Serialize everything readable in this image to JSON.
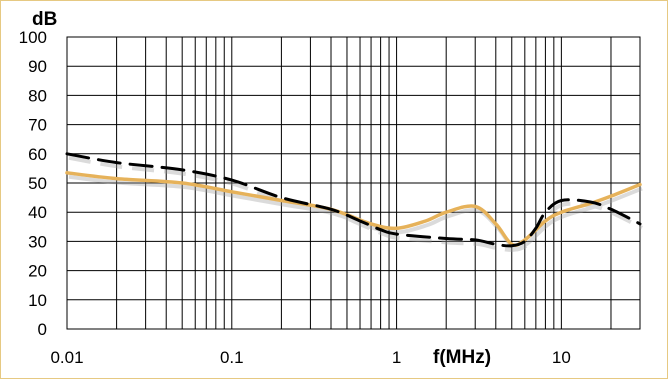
{
  "chart_data": {
    "type": "line",
    "xlabel": "f(MHz)",
    "ylabel": "dB",
    "x_scale": "log",
    "xlim": [
      0.01,
      30
    ],
    "ylim": [
      0,
      100
    ],
    "grid": true,
    "x_tick_labels": [
      "0.01",
      "0.1",
      "1",
      "10"
    ],
    "y_tick_labels": [
      "0",
      "10",
      "20",
      "30",
      "40",
      "50",
      "60",
      "70",
      "80",
      "90",
      "100"
    ],
    "series": [
      {
        "color": "#e6b25a",
        "style": "solid",
        "x": [
          0.01,
          0.02,
          0.05,
          0.1,
          0.2,
          0.4,
          0.7,
          1.0,
          1.5,
          2.0,
          3.0,
          4.0,
          5.0,
          6.0,
          8.0,
          10,
          15,
          20,
          30
        ],
        "y": [
          53.5,
          51.5,
          50.0,
          47.0,
          44.0,
          41.0,
          36.0,
          34.5,
          37.0,
          40.0,
          42.0,
          36.0,
          29.0,
          30.5,
          37.0,
          40.0,
          43.0,
          45.5,
          49.5
        ]
      },
      {
        "color": "#000000",
        "style": "dashed",
        "x": [
          0.01,
          0.02,
          0.05,
          0.1,
          0.2,
          0.4,
          0.6,
          0.8,
          1.0,
          2.0,
          3.0,
          4.0,
          5.0,
          6.0,
          7.0,
          8.0,
          10,
          15,
          20,
          30
        ],
        "y": [
          60.0,
          57.0,
          54.5,
          51.0,
          45.0,
          41.0,
          37.0,
          34.0,
          32.5,
          31.0,
          30.5,
          29.0,
          28.5,
          30.0,
          34.5,
          40.0,
          44.0,
          43.5,
          41.0,
          36.0
        ]
      }
    ]
  }
}
